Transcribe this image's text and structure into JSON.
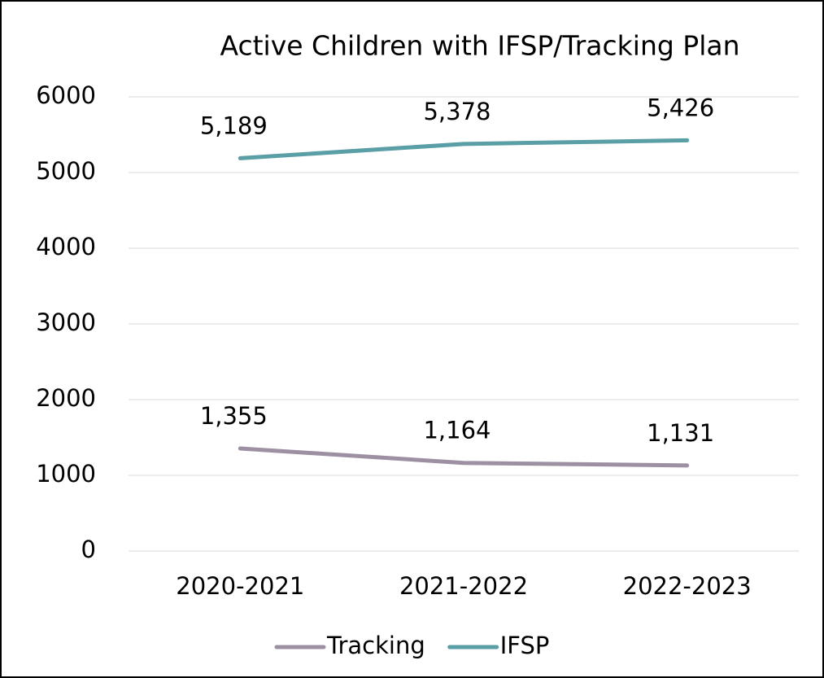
{
  "chart_data": {
    "type": "line",
    "title": "Active Children with IFSP/Tracking Plan",
    "categories": [
      "2020-2021",
      "2021-2022",
      "2022-2023"
    ],
    "series": [
      {
        "name": "Tracking",
        "color": "#9c90a2",
        "values": [
          1355,
          1164,
          1131
        ],
        "value_labels": [
          "1,355",
          "1,164",
          "1,131"
        ]
      },
      {
        "name": "IFSP",
        "color": "#5a9ea6",
        "values": [
          5189,
          5378,
          5426
        ],
        "value_labels": [
          "5,189",
          "5,378",
          "5,426"
        ]
      }
    ],
    "ylim": [
      0,
      6000
    ],
    "yticks": [
      0,
      1000,
      2000,
      3000,
      4000,
      5000,
      6000
    ],
    "grid": true,
    "legend": "bottom"
  }
}
